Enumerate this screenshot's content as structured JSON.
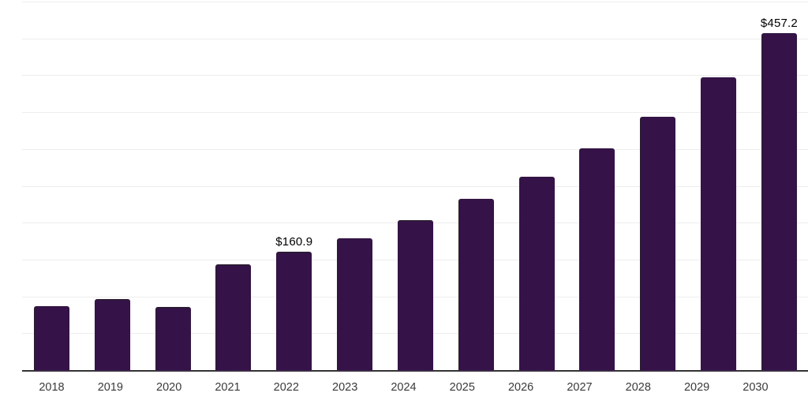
{
  "chart_data": {
    "type": "bar",
    "title": "",
    "xlabel": "",
    "ylabel": "",
    "categories": [
      "2018",
      "2019",
      "2020",
      "2021",
      "2022",
      "2023",
      "2024",
      "2025",
      "2026",
      "2027",
      "2028",
      "2029",
      "2030"
    ],
    "values": [
      86.6,
      96.5,
      85.8,
      143.6,
      160.9,
      178.8,
      203.3,
      231.9,
      262.5,
      300.8,
      344.2,
      397.5,
      457.2
    ],
    "data_labels": {
      "2022": "$160.9",
      "2030": "$457.2"
    },
    "ylim": [
      0,
      500
    ],
    "gridline_interval": 50,
    "grid": true,
    "legend": false,
    "y_axis_labels_visible": false,
    "colors": {
      "bar": "#351349",
      "gridline": "#ededed",
      "axis_line": "#333333",
      "tick_label": "#3a3a3a",
      "value_label": "#000000",
      "background": "#ffffff"
    }
  }
}
